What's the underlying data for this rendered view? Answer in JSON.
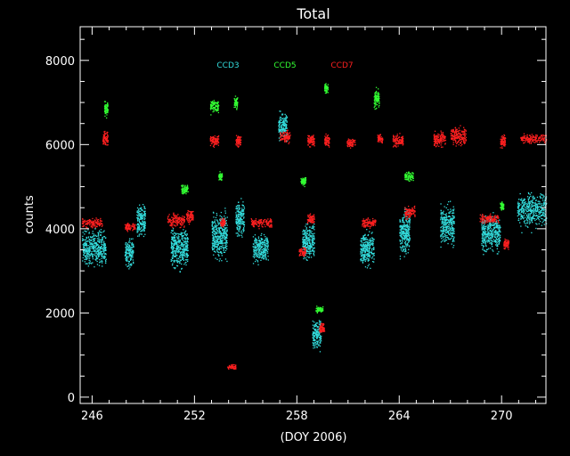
{
  "chart_data": {
    "type": "scatter",
    "title": "Total",
    "xlabel": "(DOY 2006)",
    "ylabel": "counts",
    "xlim": [
      245.3,
      272.6
    ],
    "ylim": [
      -150,
      8800
    ],
    "x_ticks": [
      246,
      252,
      258,
      264,
      270
    ],
    "y_ticks": [
      0,
      2000,
      4000,
      6000,
      8000
    ],
    "legend_position": "top-center",
    "series": [
      {
        "name": "CCD3",
        "color": "#33dddd",
        "clusters": [
          {
            "x": [
              245.4,
              246.8
            ],
            "y": [
              3000,
              4100
            ]
          },
          {
            "x": [
              247.9,
              248.4
            ],
            "y": [
              3000,
              3900
            ]
          },
          {
            "x": [
              248.6,
              249.1
            ],
            "y": [
              3700,
              4800
            ]
          },
          {
            "x": [
              250.6,
              251.6
            ],
            "y": [
              2900,
              4200
            ]
          },
          {
            "x": [
              253.0,
              253.9
            ],
            "y": [
              3100,
              4600
            ]
          },
          {
            "x": [
              254.4,
              254.9
            ],
            "y": [
              3700,
              4800
            ]
          },
          {
            "x": [
              255.4,
              256.3
            ],
            "y": [
              3100,
              4000
            ]
          },
          {
            "x": [
              256.9,
              257.4
            ],
            "y": [
              6000,
              6900
            ]
          },
          {
            "x": [
              258.3,
              259.0
            ],
            "y": [
              3100,
              4300
            ]
          },
          {
            "x": [
              258.9,
              259.4
            ],
            "y": [
              1000,
              2000
            ]
          },
          {
            "x": [
              261.7,
              262.5
            ],
            "y": [
              3000,
              4100
            ]
          },
          {
            "x": [
              264.0,
              264.6
            ],
            "y": [
              3200,
              4600
            ]
          },
          {
            "x": [
              266.4,
              267.2
            ],
            "y": [
              3500,
              4700
            ]
          },
          {
            "x": [
              268.8,
              269.9
            ],
            "y": [
              3300,
              4500
            ]
          },
          {
            "x": [
              270.9,
              272.6
            ],
            "y": [
              3900,
              5000
            ]
          }
        ]
      },
      {
        "name": "CCD5",
        "color": "#33ff33",
        "clusters": [
          {
            "x": [
              246.7,
              246.9
            ],
            "y": [
              6600,
              7100
            ]
          },
          {
            "x": [
              251.2,
              251.6
            ],
            "y": [
              4800,
              5100
            ]
          },
          {
            "x": [
              252.9,
              253.4
            ],
            "y": [
              6700,
              7100
            ]
          },
          {
            "x": [
              253.4,
              253.6
            ],
            "y": [
              5100,
              5400
            ]
          },
          {
            "x": [
              254.3,
              254.5
            ],
            "y": [
              6800,
              7200
            ]
          },
          {
            "x": [
              258.2,
              258.5
            ],
            "y": [
              5000,
              5300
            ]
          },
          {
            "x": [
              259.1,
              259.5
            ],
            "y": [
              2000,
              2200
            ]
          },
          {
            "x": [
              259.6,
              259.8
            ],
            "y": [
              7200,
              7500
            ]
          },
          {
            "x": [
              262.5,
              262.8
            ],
            "y": [
              6800,
              7400
            ]
          },
          {
            "x": [
              264.3,
              264.8
            ],
            "y": [
              5100,
              5400
            ]
          },
          {
            "x": [
              269.9,
              270.1
            ],
            "y": [
              4400,
              4700
            ]
          }
        ]
      },
      {
        "name": "CCD7",
        "color": "#ff2020",
        "clusters": [
          {
            "x": [
              245.4,
              246.6
            ],
            "y": [
              4000,
              4300
            ]
          },
          {
            "x": [
              246.6,
              246.9
            ],
            "y": [
              5900,
              6400
            ]
          },
          {
            "x": [
              247.9,
              248.5
            ],
            "y": [
              3900,
              4200
            ]
          },
          {
            "x": [
              250.4,
              251.4
            ],
            "y": [
              4000,
              4400
            ]
          },
          {
            "x": [
              251.5,
              251.9
            ],
            "y": [
              4100,
              4500
            ]
          },
          {
            "x": [
              252.9,
              253.4
            ],
            "y": [
              5900,
              6300
            ]
          },
          {
            "x": [
              253.5,
              253.8
            ],
            "y": [
              4000,
              4300
            ]
          },
          {
            "x": [
              253.9,
              254.4
            ],
            "y": [
              650,
              800
            ]
          },
          {
            "x": [
              254.4,
              254.7
            ],
            "y": [
              5900,
              6300
            ]
          },
          {
            "x": [
              255.3,
              256.5
            ],
            "y": [
              4000,
              4300
            ]
          },
          {
            "x": [
              257.0,
              257.6
            ],
            "y": [
              6000,
              6400
            ]
          },
          {
            "x": [
              258.1,
              258.5
            ],
            "y": [
              3300,
              3600
            ]
          },
          {
            "x": [
              258.6,
              259.0
            ],
            "y": [
              4100,
              4400
            ]
          },
          {
            "x": [
              258.6,
              259.0
            ],
            "y": [
              5900,
              6300
            ]
          },
          {
            "x": [
              259.3,
              259.6
            ],
            "y": [
              1500,
              1800
            ]
          },
          {
            "x": [
              259.6,
              259.9
            ],
            "y": [
              5900,
              6300
            ]
          },
          {
            "x": [
              260.9,
              261.4
            ],
            "y": [
              5900,
              6200
            ]
          },
          {
            "x": [
              261.8,
              262.6
            ],
            "y": [
              4000,
              4300
            ]
          },
          {
            "x": [
              262.7,
              263.0
            ],
            "y": [
              6000,
              6300
            ]
          },
          {
            "x": [
              263.6,
              264.2
            ],
            "y": [
              5900,
              6300
            ]
          },
          {
            "x": [
              264.3,
              264.9
            ],
            "y": [
              4200,
              4600
            ]
          },
          {
            "x": [
              266.0,
              266.7
            ],
            "y": [
              5900,
              6400
            ]
          },
          {
            "x": [
              267.0,
              267.9
            ],
            "y": [
              5900,
              6500
            ]
          },
          {
            "x": [
              268.7,
              269.8
            ],
            "y": [
              4100,
              4400
            ]
          },
          {
            "x": [
              269.9,
              270.2
            ],
            "y": [
              5900,
              6300
            ]
          },
          {
            "x": [
              270.1,
              270.4
            ],
            "y": [
              3500,
              3800
            ]
          },
          {
            "x": [
              271.1,
              272.6
            ],
            "y": [
              6000,
              6300
            ]
          }
        ]
      }
    ]
  }
}
